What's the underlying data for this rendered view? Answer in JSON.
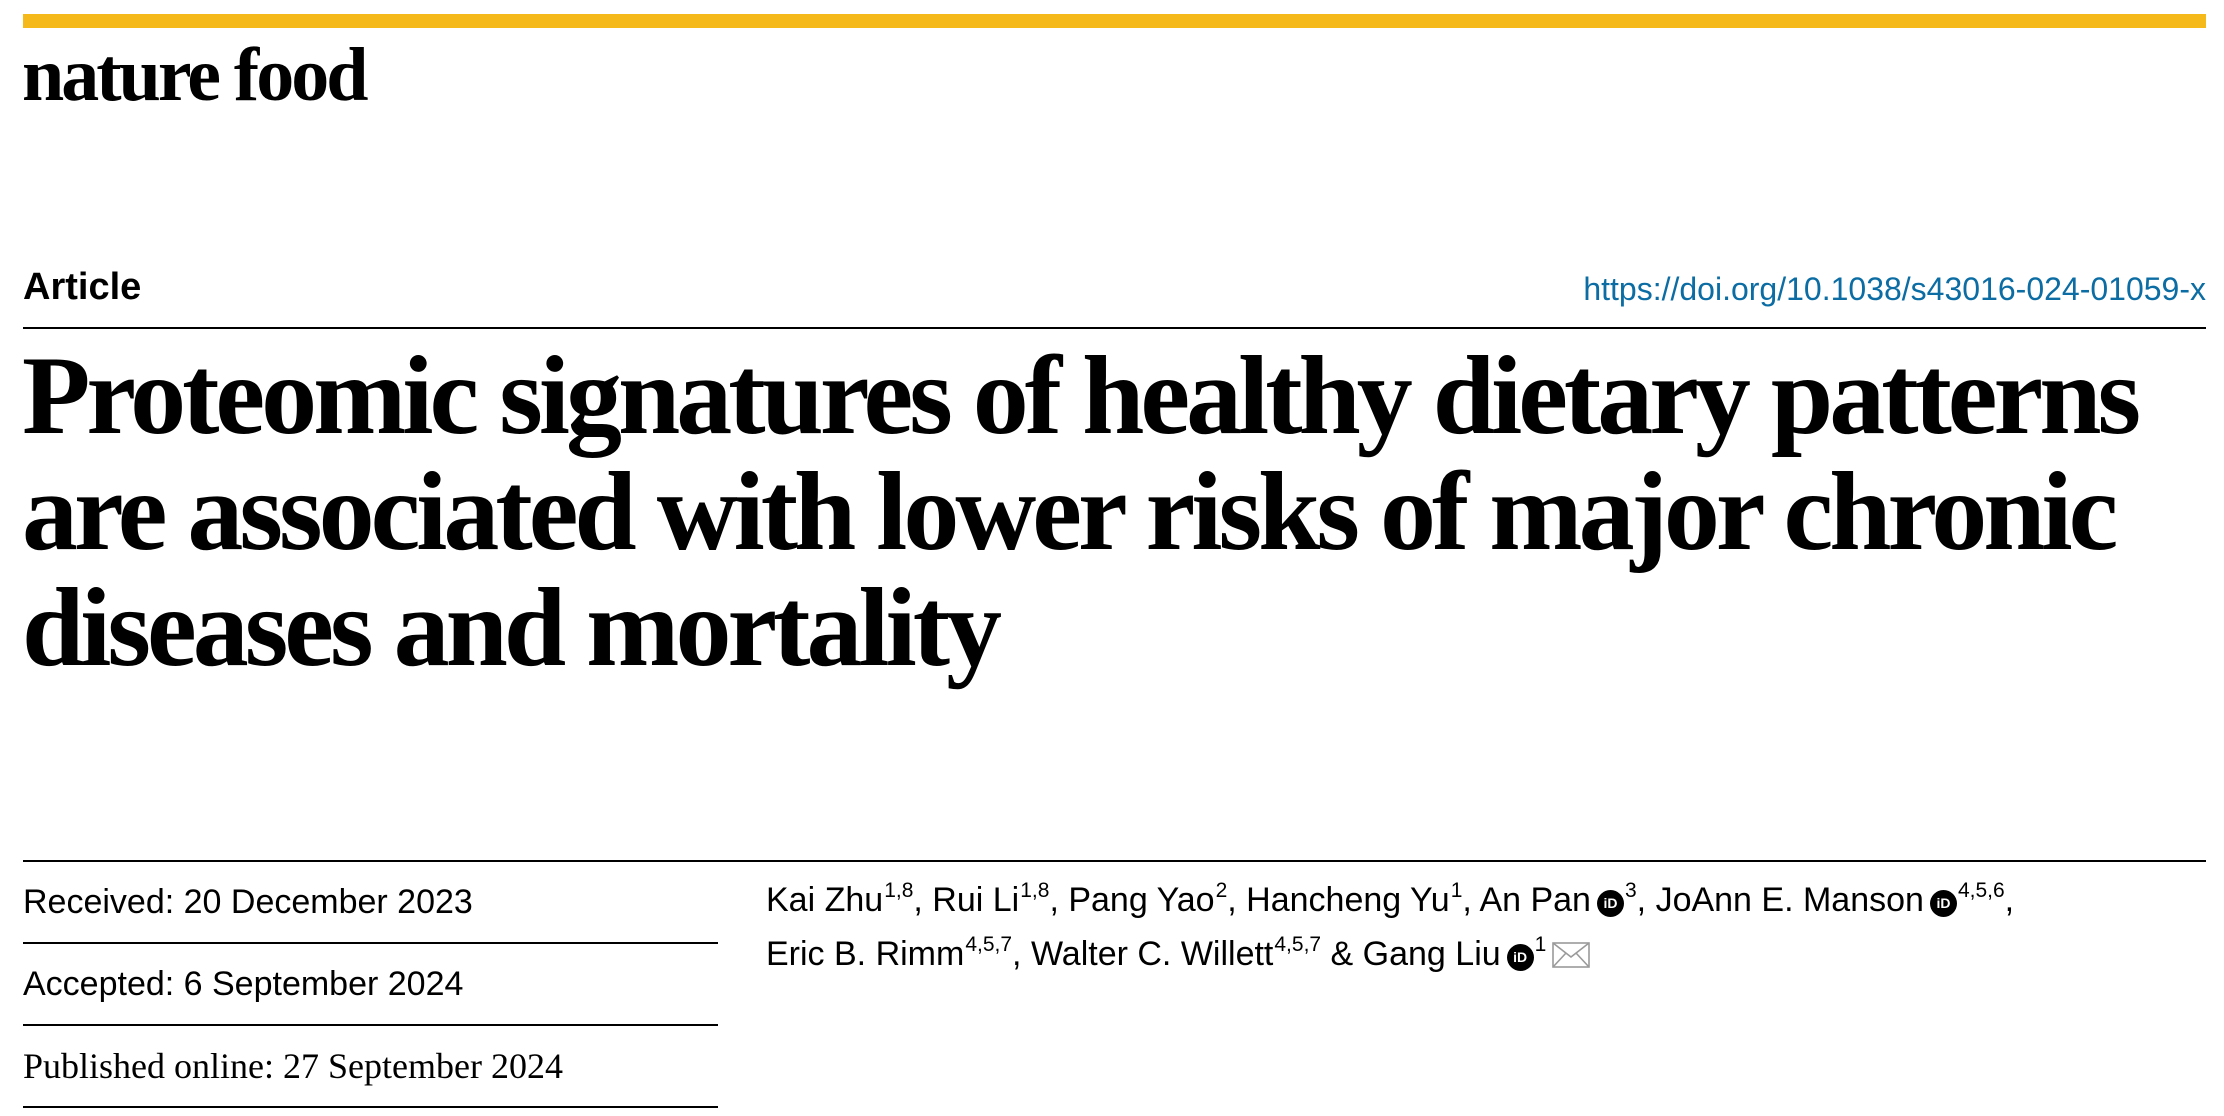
{
  "colors": {
    "accent_bar": "#f5b919",
    "doi_link": "#0b6da3",
    "text": "#000000"
  },
  "journal": {
    "name": "nature food"
  },
  "article": {
    "type": "Article",
    "doi": "https://doi.org/10.1038/s43016-024-01059-x",
    "title": "Proteomic signatures of healthy dietary patterns are associated with lower risks of major chronic diseases and mortality"
  },
  "dates": {
    "received": "Received: 20 December 2023",
    "accepted": "Accepted: 6 September 2024",
    "published": "Published online: 27 September 2024"
  },
  "authors": [
    {
      "name": "Kai Zhu",
      "affiliations": "1,8",
      "orcid": false,
      "separator": ", "
    },
    {
      "name": "Rui Li",
      "affiliations": "1,8",
      "orcid": false,
      "separator": ", "
    },
    {
      "name": "Pang Yao",
      "affiliations": "2",
      "orcid": false,
      "separator": ", "
    },
    {
      "name": "Hancheng Yu",
      "affiliations": "1",
      "orcid": false,
      "separator": ", "
    },
    {
      "name": "An Pan",
      "affiliations": "3",
      "orcid": true,
      "separator": ", "
    },
    {
      "name": "JoAnn E. Manson",
      "affiliations": "4,5,6",
      "orcid": true,
      "separator": ", "
    },
    {
      "name": "Eric B. Rimm",
      "affiliations": "4,5,7",
      "orcid": false,
      "separator": ", "
    },
    {
      "name": "Walter C. Willett",
      "affiliations": "4,5,7",
      "orcid": false,
      "separator": " & "
    },
    {
      "name": "Gang Liu",
      "affiliations": "1",
      "orcid": true,
      "separator": "",
      "corresponding": true
    }
  ],
  "icons": {
    "orcid": "orcid-icon",
    "orcid_glyph": "iD",
    "mail": "envelope-icon"
  }
}
